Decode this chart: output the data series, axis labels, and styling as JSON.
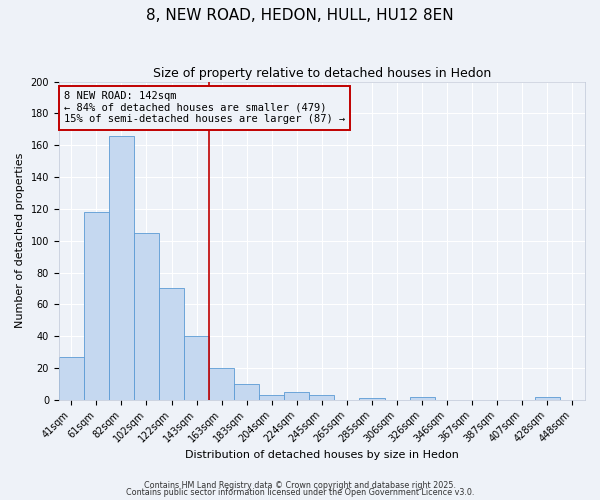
{
  "title": "8, NEW ROAD, HEDON, HULL, HU12 8EN",
  "subtitle": "Size of property relative to detached houses in Hedon",
  "xlabel": "Distribution of detached houses by size in Hedon",
  "ylabel": "Number of detached properties",
  "bar_labels": [
    "41sqm",
    "61sqm",
    "82sqm",
    "102sqm",
    "122sqm",
    "143sqm",
    "163sqm",
    "183sqm",
    "204sqm",
    "224sqm",
    "245sqm",
    "265sqm",
    "285sqm",
    "306sqm",
    "326sqm",
    "346sqm",
    "367sqm",
    "387sqm",
    "407sqm",
    "428sqm",
    "448sqm"
  ],
  "bar_values": [
    27,
    118,
    166,
    105,
    70,
    40,
    20,
    10,
    3,
    5,
    3,
    0,
    1,
    0,
    2,
    0,
    0,
    0,
    0,
    2,
    0
  ],
  "bar_color": "#c5d8f0",
  "bar_edge_color": "#5b9bd5",
  "bar_width": 1.0,
  "ylim": [
    0,
    200
  ],
  "yticks": [
    0,
    20,
    40,
    60,
    80,
    100,
    120,
    140,
    160,
    180,
    200
  ],
  "vline_x_index": 5,
  "vline_color": "#c00000",
  "annotation_line1": "8 NEW ROAD: 142sqm",
  "annotation_line2": "← 84% of detached houses are smaller (479)",
  "annotation_line3": "15% of semi-detached houses are larger (87) →",
  "annotation_box_color": "#c00000",
  "footnote1": "Contains HM Land Registry data © Crown copyright and database right 2025.",
  "footnote2": "Contains public sector information licensed under the Open Government Licence v3.0.",
  "bg_color": "#eef2f8",
  "grid_color": "#ffffff",
  "title_fontsize": 11,
  "subtitle_fontsize": 9,
  "axis_label_fontsize": 8,
  "tick_fontsize": 7,
  "annotation_fontsize": 7.5,
  "footnote_fontsize": 5.8
}
